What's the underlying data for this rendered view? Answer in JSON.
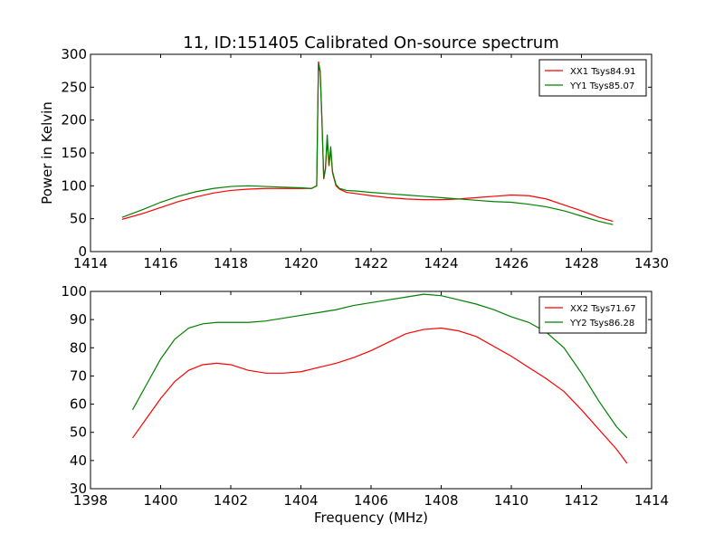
{
  "chart_data": [
    {
      "type": "line",
      "title": "11, ID:151405 Calibrated On-source spectrum",
      "xlabel": "",
      "ylabel": "Power in Kelvin",
      "xlim": [
        1414,
        1430
      ],
      "ylim": [
        0,
        300
      ],
      "xticks": [
        1414,
        1416,
        1418,
        1420,
        1422,
        1424,
        1426,
        1428,
        1430
      ],
      "yticks": [
        0,
        50,
        100,
        150,
        200,
        250,
        300
      ],
      "grid": false,
      "legend_position": "top-right",
      "series": [
        {
          "name": "XX1 Tsys84.91",
          "color": "#ff0000",
          "x": [
            1414.9,
            1415.5,
            1416.0,
            1416.5,
            1417.0,
            1417.5,
            1418.0,
            1418.5,
            1419.0,
            1419.5,
            1420.0,
            1420.3,
            1420.45,
            1420.5,
            1420.55,
            1420.6,
            1420.65,
            1420.7,
            1420.75,
            1420.8,
            1420.85,
            1420.9,
            1420.95,
            1421.0,
            1421.1,
            1421.3,
            1421.6,
            1422.0,
            1422.5,
            1423.0,
            1423.5,
            1424.0,
            1424.5,
            1425.0,
            1425.5,
            1426.0,
            1426.5,
            1427.0,
            1427.5,
            1428.0,
            1428.5,
            1428.9
          ],
          "y": [
            49,
            58,
            67,
            76,
            83,
            89,
            93,
            95,
            96,
            96,
            96,
            96,
            100,
            289,
            275,
            200,
            110,
            125,
            170,
            130,
            155,
            120,
            110,
            100,
            95,
            90,
            88,
            85,
            82,
            80,
            79,
            79,
            80,
            82,
            84,
            86,
            85,
            80,
            71,
            62,
            52,
            46
          ]
        },
        {
          "name": "YY1 Tsys85.07",
          "color": "#008000",
          "x": [
            1414.9,
            1415.5,
            1416.0,
            1416.5,
            1417.0,
            1417.5,
            1418.0,
            1418.5,
            1419.0,
            1419.5,
            1420.0,
            1420.3,
            1420.45,
            1420.5,
            1420.55,
            1420.6,
            1420.65,
            1420.7,
            1420.75,
            1420.8,
            1420.85,
            1420.9,
            1420.95,
            1421.0,
            1421.1,
            1421.3,
            1421.6,
            1422.0,
            1422.5,
            1423.0,
            1423.5,
            1424.0,
            1424.5,
            1425.0,
            1425.5,
            1426.0,
            1426.5,
            1427.0,
            1427.5,
            1428.0,
            1428.5,
            1428.9
          ],
          "y": [
            52,
            64,
            75,
            84,
            91,
            96,
            99,
            100,
            99,
            98,
            97,
            96,
            100,
            286,
            272,
            198,
            112,
            128,
            178,
            132,
            160,
            122,
            112,
            102,
            96,
            93,
            92,
            90,
            88,
            86,
            84,
            82,
            80,
            78,
            76,
            75,
            72,
            68,
            62,
            54,
            46,
            41
          ]
        }
      ]
    },
    {
      "type": "line",
      "title": "",
      "xlabel": "Frequency (MHz)",
      "ylabel": "",
      "xlim": [
        1398,
        1414
      ],
      "ylim": [
        30,
        100
      ],
      "xticks": [
        1398,
        1400,
        1402,
        1404,
        1406,
        1408,
        1410,
        1412,
        1414
      ],
      "yticks": [
        30,
        40,
        50,
        60,
        70,
        80,
        90,
        100
      ],
      "grid": false,
      "legend_position": "top-right",
      "series": [
        {
          "name": "XX2 Tsys71.67",
          "color": "#ff0000",
          "x": [
            1399.2,
            1399.6,
            1400.0,
            1400.4,
            1400.8,
            1401.2,
            1401.6,
            1402.0,
            1402.5,
            1403.0,
            1403.5,
            1404.0,
            1404.5,
            1405.0,
            1405.5,
            1406.0,
            1406.5,
            1407.0,
            1407.5,
            1408.0,
            1408.5,
            1409.0,
            1409.5,
            1410.0,
            1410.5,
            1411.0,
            1411.5,
            1412.0,
            1412.5,
            1413.0,
            1413.3
          ],
          "y": [
            48,
            55,
            62,
            68,
            72,
            74,
            74.5,
            74,
            72,
            71,
            71,
            71.5,
            73,
            74.5,
            76.5,
            79,
            82,
            85,
            86.5,
            87,
            86,
            84,
            80.5,
            77,
            73,
            69,
            64.5,
            58,
            51,
            44,
            39
          ]
        },
        {
          "name": "YY2 Tsys86.28",
          "color": "#008000",
          "x": [
            1399.2,
            1399.6,
            1400.0,
            1400.4,
            1400.8,
            1401.2,
            1401.6,
            1402.0,
            1402.5,
            1403.0,
            1403.5,
            1404.0,
            1404.5,
            1405.0,
            1405.5,
            1406.0,
            1406.5,
            1407.0,
            1407.5,
            1408.0,
            1408.5,
            1409.0,
            1409.5,
            1410.0,
            1410.5,
            1411.0,
            1411.5,
            1412.0,
            1412.5,
            1413.0,
            1413.3
          ],
          "y": [
            58,
            67,
            76,
            83,
            87,
            88.5,
            89,
            89,
            89,
            89.5,
            90.5,
            91.5,
            92.5,
            93.5,
            95,
            96,
            97,
            98,
            99,
            98.5,
            97,
            95.5,
            93.5,
            91,
            89,
            85.5,
            80,
            71,
            61,
            52,
            48
          ]
        }
      ]
    }
  ]
}
